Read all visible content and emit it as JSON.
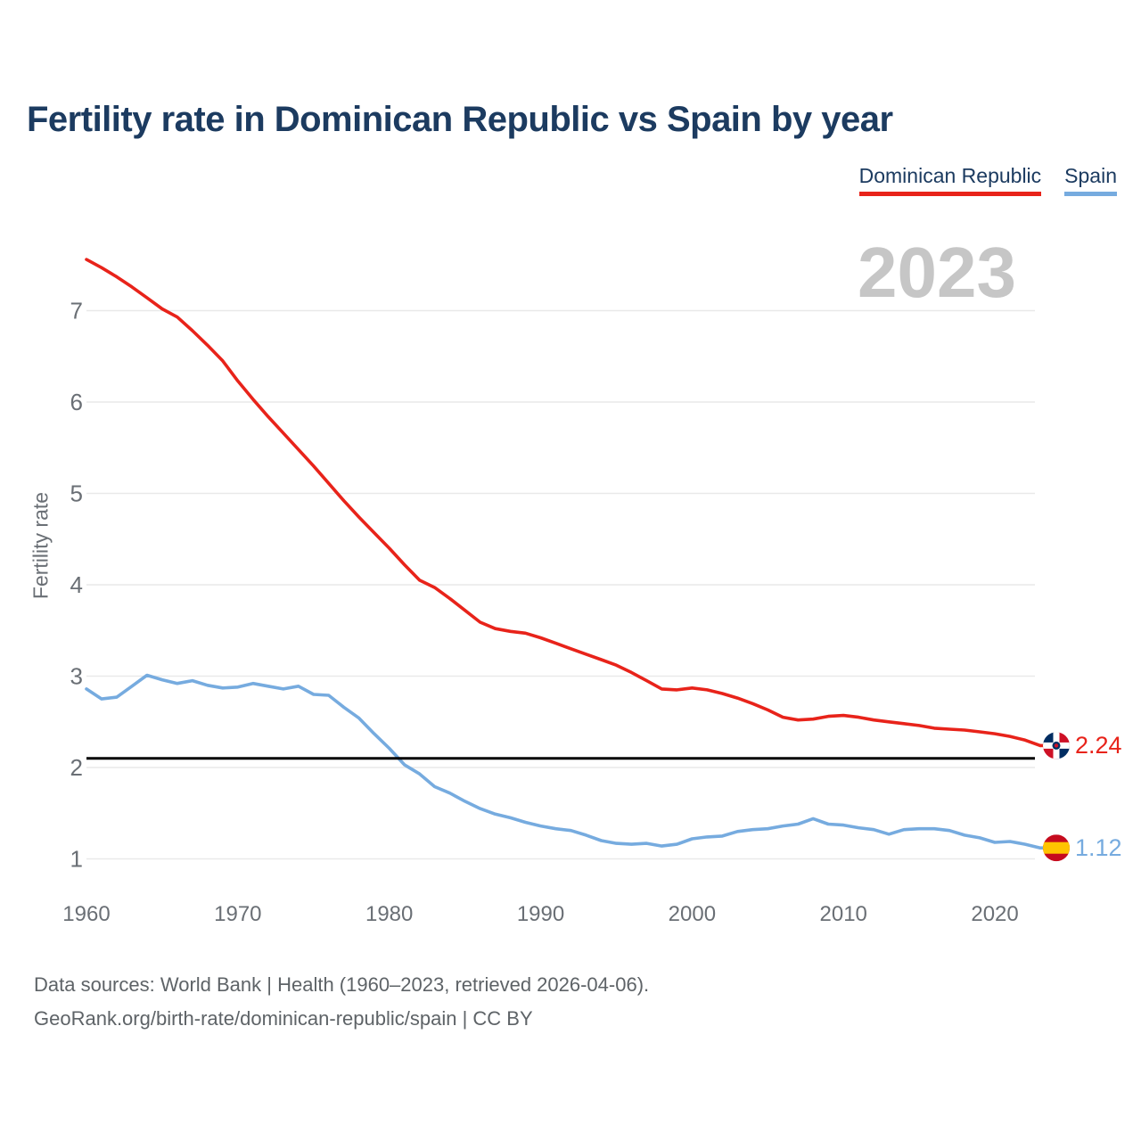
{
  "header": {
    "title": "Fertility rate in Dominican Republic vs Spain by year"
  },
  "legend": [
    {
      "label": "Dominican Republic",
      "color": "#e8231a"
    },
    {
      "label": "Spain",
      "color": "#76abdf"
    }
  ],
  "watermark": "2023",
  "y_axis": {
    "label": "Fertility rate",
    "ticks": [
      1,
      2,
      3,
      4,
      5,
      6,
      7
    ]
  },
  "x_axis": {
    "ticks": [
      1960,
      1970,
      1980,
      1990,
      2000,
      2010,
      2020
    ]
  },
  "reference_line": {
    "value": 2.1,
    "color": "#000000"
  },
  "end_labels": [
    {
      "series": "Dominican Republic",
      "value": "2.24",
      "flag": "dominican-republic-flag",
      "color": "#e8231a"
    },
    {
      "series": "Spain",
      "value": "1.12",
      "flag": "spain-flag",
      "color": "#76abdf"
    }
  ],
  "footer": {
    "line1": "Data sources: World Bank | Health (1960–2023, retrieved 2026-04-06).",
    "line2": "GeoRank.org/birth-rate/dominican-republic/spain | CC BY"
  },
  "chart_data": {
    "type": "line",
    "title": "Fertility rate in Dominican Republic vs Spain by year",
    "xlabel": "",
    "ylabel": "Fertility rate",
    "xlim": [
      1960,
      2023
    ],
    "ylim": [
      0.7,
      7.8
    ],
    "grid": "horizontal",
    "legend_position": "top-right",
    "annotations": {
      "watermark": "2023",
      "replacement_rate_line": 2.1
    },
    "x": [
      1960,
      1961,
      1962,
      1963,
      1964,
      1965,
      1966,
      1967,
      1968,
      1969,
      1970,
      1971,
      1972,
      1973,
      1974,
      1975,
      1976,
      1977,
      1978,
      1979,
      1980,
      1981,
      1982,
      1983,
      1984,
      1985,
      1986,
      1987,
      1988,
      1989,
      1990,
      1991,
      1992,
      1993,
      1994,
      1995,
      1996,
      1997,
      1998,
      1999,
      2000,
      2001,
      2002,
      2003,
      2004,
      2005,
      2006,
      2007,
      2008,
      2009,
      2010,
      2011,
      2012,
      2013,
      2014,
      2015,
      2016,
      2017,
      2018,
      2019,
      2020,
      2021,
      2022,
      2023
    ],
    "series": [
      {
        "name": "Dominican Republic",
        "color": "#e8231a",
        "end_value": 2.24,
        "values": [
          7.56,
          7.47,
          7.37,
          7.26,
          7.14,
          7.02,
          6.93,
          6.78,
          6.62,
          6.45,
          6.23,
          6.03,
          5.84,
          5.66,
          5.48,
          5.3,
          5.11,
          4.92,
          4.74,
          4.57,
          4.4,
          4.22,
          4.05,
          3.97,
          3.85,
          3.72,
          3.59,
          3.52,
          3.49,
          3.47,
          3.42,
          3.36,
          3.3,
          3.24,
          3.18,
          3.12,
          3.04,
          2.95,
          2.86,
          2.85,
          2.87,
          2.85,
          2.81,
          2.76,
          2.7,
          2.63,
          2.55,
          2.52,
          2.53,
          2.56,
          2.57,
          2.55,
          2.52,
          2.5,
          2.48,
          2.46,
          2.43,
          2.42,
          2.41,
          2.39,
          2.37,
          2.34,
          2.3,
          2.24
        ]
      },
      {
        "name": "Spain",
        "color": "#76abdf",
        "end_value": 1.12,
        "values": [
          2.86,
          2.75,
          2.77,
          2.89,
          3.01,
          2.96,
          2.92,
          2.95,
          2.9,
          2.87,
          2.88,
          2.92,
          2.89,
          2.86,
          2.89,
          2.8,
          2.79,
          2.66,
          2.54,
          2.37,
          2.21,
          2.03,
          1.93,
          1.79,
          1.72,
          1.63,
          1.55,
          1.49,
          1.45,
          1.4,
          1.36,
          1.33,
          1.31,
          1.26,
          1.2,
          1.17,
          1.16,
          1.17,
          1.14,
          1.16,
          1.22,
          1.24,
          1.25,
          1.3,
          1.32,
          1.33,
          1.36,
          1.38,
          1.44,
          1.38,
          1.37,
          1.34,
          1.32,
          1.27,
          1.32,
          1.33,
          1.33,
          1.31,
          1.26,
          1.23,
          1.18,
          1.19,
          1.16,
          1.12
        ]
      }
    ]
  }
}
